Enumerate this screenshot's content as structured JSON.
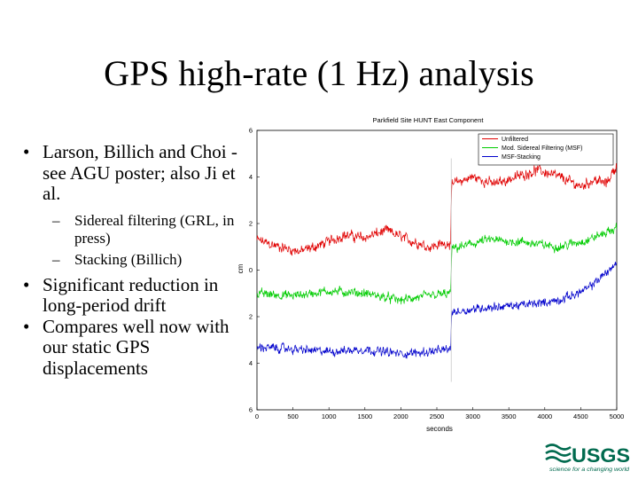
{
  "slide": {
    "title": "GPS high-rate (1 Hz) analysis",
    "bullets": [
      {
        "text": "Larson, Billich and Choi - see AGU poster; also Ji et al.",
        "sub": [
          "Sidereal filtering (GRL, in press)",
          "Stacking (Billich)"
        ]
      },
      {
        "text": "Significant reduction in long-period drift",
        "sub": []
      },
      {
        "text": "Compares well now with our static GPS displacements",
        "sub": []
      }
    ],
    "bullet_glyph": "•",
    "sub_glyph": "–"
  },
  "chart_data": {
    "type": "line",
    "title": "Parkfield Site HUNT   East Component",
    "xlabel": "seconds",
    "ylabel": "cm",
    "xlim": [
      0,
      5000
    ],
    "ylim": [
      -6,
      6
    ],
    "xticks": [
      0,
      500,
      1000,
      1500,
      2000,
      2500,
      3000,
      3500,
      4000,
      4500,
      5000
    ],
    "yticks": [
      6,
      4,
      2,
      0,
      2,
      4,
      6
    ],
    "grid": false,
    "legend_position": "top-right",
    "step_x": 2700,
    "series": [
      {
        "name": "Unfiltered",
        "color": "#e00000",
        "anchors": [
          [
            0,
            1.3
          ],
          [
            300,
            1.0
          ],
          [
            600,
            0.8
          ],
          [
            900,
            1.1
          ],
          [
            1200,
            1.5
          ],
          [
            1500,
            1.4
          ],
          [
            1800,
            1.7
          ],
          [
            2100,
            1.3
          ],
          [
            2400,
            1.0
          ],
          [
            2690,
            1.2
          ],
          [
            2710,
            3.7
          ],
          [
            3000,
            4.0
          ],
          [
            3300,
            3.7
          ],
          [
            3600,
            4.0
          ],
          [
            3900,
            4.3
          ],
          [
            4200,
            4.0
          ],
          [
            4500,
            3.6
          ],
          [
            4700,
            3.9
          ],
          [
            4850,
            3.7
          ],
          [
            5000,
            4.5
          ]
        ],
        "noise": 0.45
      },
      {
        "name": "Mod. Sidereal Filtering (MSF)",
        "color": "#00cc00",
        "anchors": [
          [
            0,
            -1.0
          ],
          [
            500,
            -1.1
          ],
          [
            1000,
            -0.9
          ],
          [
            1500,
            -1.0
          ],
          [
            2000,
            -1.3
          ],
          [
            2400,
            -1.1
          ],
          [
            2690,
            -1.0
          ],
          [
            2710,
            0.9
          ],
          [
            3200,
            1.3
          ],
          [
            3700,
            1.2
          ],
          [
            4200,
            1.0
          ],
          [
            4600,
            1.3
          ],
          [
            5000,
            1.8
          ]
        ],
        "noise": 0.4
      },
      {
        "name": "MSF-Stacking",
        "color": "#0000cc",
        "anchors": [
          [
            0,
            -3.3
          ],
          [
            500,
            -3.4
          ],
          [
            1000,
            -3.5
          ],
          [
            1500,
            -3.4
          ],
          [
            2000,
            -3.6
          ],
          [
            2400,
            -3.5
          ],
          [
            2690,
            -3.4
          ],
          [
            2710,
            -1.8
          ],
          [
            3200,
            -1.6
          ],
          [
            3700,
            -1.5
          ],
          [
            4200,
            -1.3
          ],
          [
            4600,
            -0.8
          ],
          [
            5000,
            0.3
          ]
        ],
        "noise": 0.38
      }
    ]
  },
  "logo": {
    "word": "USGS",
    "tagline": "science for a changing world",
    "color": "#006a4e"
  }
}
